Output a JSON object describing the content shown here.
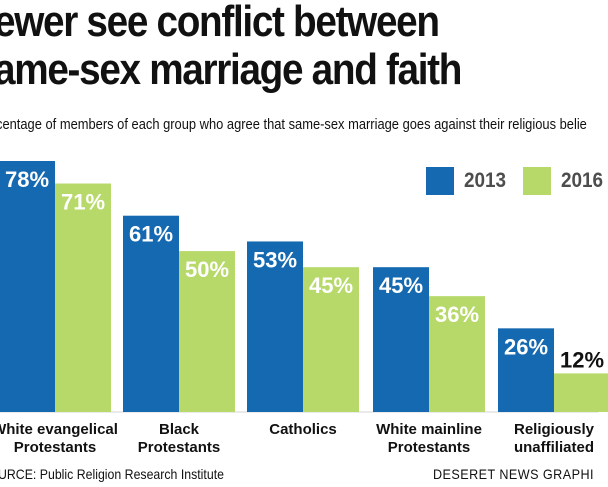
{
  "title_line1": "ewer see conflict between",
  "title_line2": "ame-sex marriage and faith",
  "subtitle": "centage of members of each group who agree that same-sex marriage goes against their religious belie",
  "source": "URCE: Public Religion Research Institute",
  "credit": "DESERET NEWS GRAPHI",
  "colors": {
    "series_2013": "#1569b1",
    "series_2016": "#b6d96a",
    "baseline": "#d6d6d6"
  },
  "chart_data": {
    "type": "bar",
    "categories": [
      [
        "White evangelical",
        "Protestants"
      ],
      [
        "Black",
        "Protestants"
      ],
      [
        "Catholics"
      ],
      [
        "White mainline",
        "Protestants"
      ],
      [
        "Religiously",
        "unaffiliated"
      ]
    ],
    "series": [
      {
        "name": "2013",
        "values": [
          78,
          61,
          53,
          45,
          26
        ],
        "labels": [
          "78%",
          "61%",
          "53%",
          "45%",
          "26%"
        ]
      },
      {
        "name": "2016",
        "values": [
          71,
          50,
          45,
          36,
          12
        ],
        "labels": [
          "71%",
          "50%",
          "45%",
          "36%",
          "12%"
        ]
      }
    ],
    "ylim": [
      0,
      100
    ],
    "legend": "top-right",
    "grid": false
  }
}
